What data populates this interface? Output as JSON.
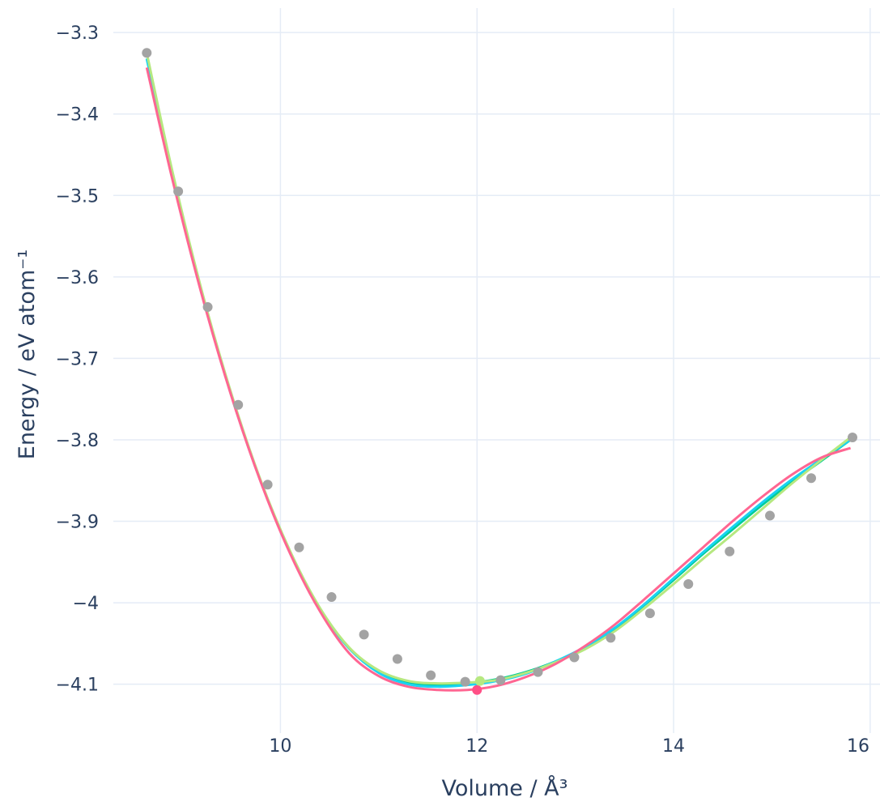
{
  "chart_data": {
    "type": "line",
    "xlabel": "Volume / Å³",
    "ylabel": "Energy / eV atom⁻¹",
    "xlim": [
      8.3,
      16.1
    ],
    "ylim": [
      -4.16,
      -3.27
    ],
    "x_ticks": [
      10,
      12,
      14,
      16
    ],
    "x_tick_labels": [
      "10",
      "12",
      "14",
      "16"
    ],
    "y_ticks": [
      -3.3,
      -3.4,
      -3.5,
      -3.6,
      -3.7,
      -3.8,
      -3.9,
      -4.0,
      -4.1
    ],
    "y_tick_labels": [
      "−3.3",
      "−3.4",
      "−3.5",
      "−3.6",
      "−3.7",
      "−3.8",
      "−3.9",
      "−4",
      "−4.1"
    ],
    "grid": true,
    "legend": "none",
    "series": [
      {
        "color": "#00cc96",
        "mode": "lines",
        "x": [
          8.64,
          8.9,
          9.2,
          9.5,
          9.8,
          10.1,
          10.4,
          10.7,
          11.0,
          11.3,
          11.6,
          11.9,
          12.2,
          12.5,
          12.8,
          13.1,
          13.4,
          13.7,
          14.0,
          14.3,
          14.6,
          14.9,
          15.2,
          15.5,
          15.8
        ],
        "y": [
          -3.332,
          -3.473,
          -3.619,
          -3.745,
          -3.851,
          -3.938,
          -4.007,
          -4.056,
          -4.084,
          -4.098,
          -4.101,
          -4.099,
          -4.094,
          -4.085,
          -4.072,
          -4.055,
          -4.032,
          -4.003,
          -3.972,
          -3.94,
          -3.91,
          -3.88,
          -3.852,
          -3.826,
          -3.8
        ]
      },
      {
        "color": "#19d3f3",
        "mode": "lines",
        "x": [
          8.64,
          8.9,
          9.2,
          9.5,
          9.8,
          10.1,
          10.4,
          10.7,
          11.0,
          11.3,
          11.6,
          11.9,
          12.2,
          12.5,
          12.8,
          13.1,
          13.4,
          13.7,
          14.0,
          14.3,
          14.6,
          14.9,
          15.2,
          15.5,
          15.8
        ],
        "y": [
          -3.332,
          -3.473,
          -3.619,
          -3.745,
          -3.851,
          -3.938,
          -4.007,
          -4.056,
          -4.086,
          -4.1,
          -4.103,
          -4.101,
          -4.096,
          -4.087,
          -4.072,
          -4.054,
          -4.031,
          -4.002,
          -3.97,
          -3.938,
          -3.907,
          -3.877,
          -3.849,
          -3.824,
          -3.8
        ]
      },
      {
        "color": "#b6e880",
        "mode": "lines",
        "x": [
          8.64,
          8.9,
          9.2,
          9.5,
          9.8,
          10.1,
          10.4,
          10.7,
          11.0,
          11.3,
          11.6,
          11.9,
          12.2,
          12.5,
          12.8,
          13.1,
          13.4,
          13.7,
          14.0,
          14.3,
          14.6,
          14.9,
          15.2,
          15.5,
          15.8
        ],
        "y": [
          -3.325,
          -3.47,
          -3.617,
          -3.743,
          -3.85,
          -3.937,
          -4.006,
          -4.055,
          -4.083,
          -4.096,
          -4.099,
          -4.098,
          -4.095,
          -4.086,
          -4.073,
          -4.057,
          -4.035,
          -4.007,
          -3.977,
          -3.946,
          -3.916,
          -3.885,
          -3.854,
          -3.825,
          -3.797
        ]
      },
      {
        "color": "#ff6692",
        "mode": "lines",
        "x": [
          8.64,
          8.9,
          9.2,
          9.5,
          9.8,
          10.1,
          10.4,
          10.7,
          11.0,
          11.3,
          11.6,
          11.9,
          12.2,
          12.5,
          12.8,
          13.1,
          13.4,
          13.7,
          14.0,
          14.3,
          14.6,
          14.9,
          15.2,
          15.5,
          15.8
        ],
        "y": [
          -3.343,
          -3.48,
          -3.622,
          -3.746,
          -3.852,
          -3.94,
          -4.01,
          -4.062,
          -4.09,
          -4.103,
          -4.107,
          -4.107,
          -4.102,
          -4.091,
          -4.075,
          -4.053,
          -4.027,
          -3.996,
          -3.964,
          -3.932,
          -3.9,
          -3.87,
          -3.843,
          -3.822,
          -3.81
        ]
      },
      {
        "color": "#a3a3a3",
        "mode": "markers",
        "x": [
          8.64,
          8.96,
          9.26,
          9.57,
          9.87,
          10.19,
          10.52,
          10.85,
          11.19,
          11.53,
          11.88,
          12.24,
          12.62,
          12.99,
          13.36,
          13.76,
          14.15,
          14.57,
          14.98,
          15.4,
          15.82
        ],
        "y": [
          -3.325,
          -3.495,
          -3.637,
          -3.757,
          -3.855,
          -3.932,
          -3.993,
          -4.039,
          -4.069,
          -4.089,
          -4.097,
          -4.095,
          -4.085,
          -4.067,
          -4.043,
          -4.013,
          -3.977,
          -3.937,
          -3.893,
          -3.847,
          -3.797
        ]
      },
      {
        "color": "#ff4f86",
        "mode": "markers",
        "x": [
          12.0
        ],
        "y": [
          -4.107
        ]
      },
      {
        "color": "#b6e880",
        "mode": "markers",
        "x": [
          12.03
        ],
        "y": [
          -4.096
        ]
      }
    ]
  }
}
